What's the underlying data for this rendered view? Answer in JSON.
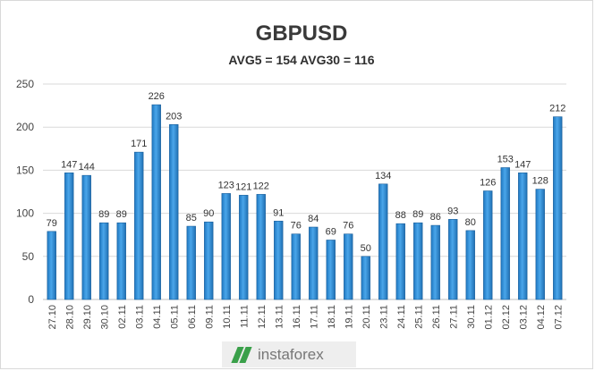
{
  "chart_data": {
    "type": "bar",
    "title": "GBPUSD",
    "subtitle": "AVG5 = 154 AVG30 = 116",
    "categories": [
      "27.10",
      "28.10",
      "29.10",
      "30.10",
      "02.11",
      "03.11",
      "04.11",
      "05.11",
      "06.11",
      "09.11",
      "10.11",
      "11.11",
      "12.11",
      "13.11",
      "16.11",
      "17.11",
      "18.11",
      "19.11",
      "20.11",
      "23.11",
      "24.11",
      "25.11",
      "26.11",
      "27.11",
      "30.11",
      "01.12",
      "02.12",
      "03.12",
      "04.12",
      "07.12"
    ],
    "values": [
      79,
      147,
      144,
      89,
      89,
      171,
      226,
      203,
      85,
      90,
      123,
      121,
      122,
      91,
      76,
      84,
      69,
      76,
      50,
      134,
      88,
      89,
      86,
      93,
      80,
      126,
      153,
      147,
      128,
      212
    ],
    "ylim": [
      0,
      250
    ],
    "yticks": [
      0,
      50,
      100,
      150,
      200,
      250
    ],
    "grid": true,
    "bar_color": "#2e8fd8",
    "bar_edge_color": "#1a5e9a"
  },
  "watermark": {
    "text": "instaforex",
    "logo_color": "#3aa04a"
  }
}
